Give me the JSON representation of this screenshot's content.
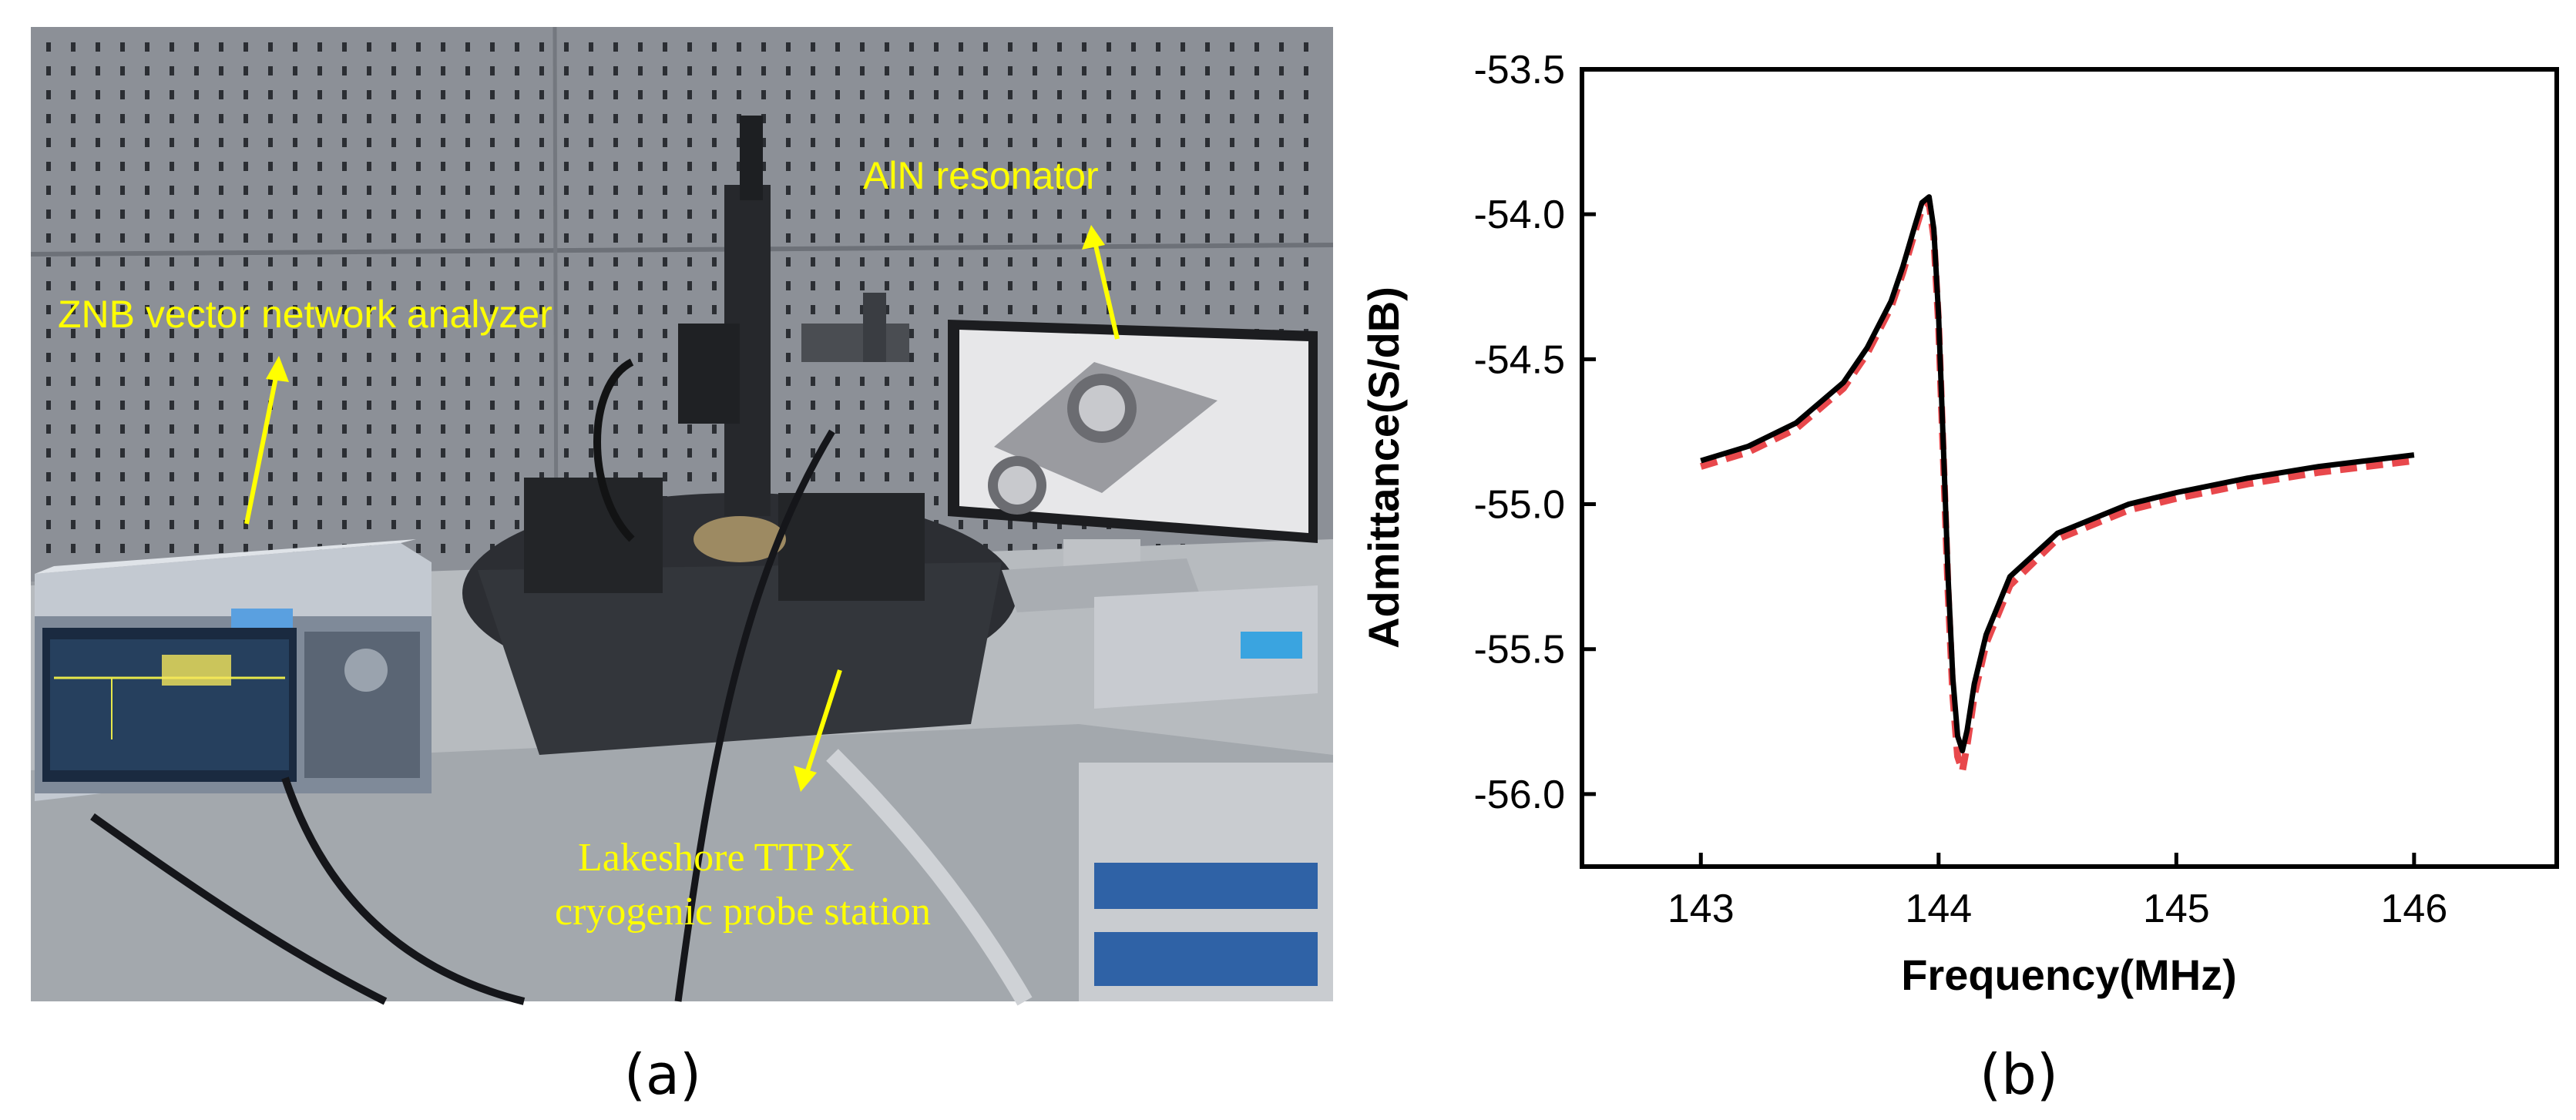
{
  "panels": {
    "a": {
      "label": "(a)",
      "annotations": {
        "vna": "ZNB vector network analyzer",
        "resonator": "AlN resonator",
        "probe_line1": "Lakeshore TTPX",
        "probe_line2": "cryogenic probe station"
      },
      "annotation_color": "#ffff00"
    },
    "b": {
      "label": "(b)"
    }
  },
  "chart_data": {
    "type": "line",
    "xlabel": "Frequency(MHz)",
    "ylabel": "Admittance(S/dB)",
    "xlim": [
      142.5,
      146.6
    ],
    "ylim": [
      -56.25,
      -53.5
    ],
    "xticks": [
      143,
      144,
      145,
      146
    ],
    "yticks": [
      -53.5,
      -54.0,
      -54.5,
      -55.0,
      -55.5,
      -56.0
    ],
    "ytick_labels": [
      "-53.5",
      "-54.0",
      "-54.5",
      "-55.0",
      "-55.5",
      "-56.0"
    ],
    "grid": false,
    "series": [
      {
        "style": "solid",
        "color": "#000000",
        "x": [
          143.0,
          143.2,
          143.4,
          143.6,
          143.7,
          143.8,
          143.85,
          143.9,
          143.93,
          143.96,
          143.98,
          144.0,
          144.02,
          144.04,
          144.06,
          144.08,
          144.1,
          144.12,
          144.15,
          144.2,
          144.3,
          144.5,
          144.8,
          145.0,
          145.3,
          145.6,
          146.0
        ],
        "y": [
          -54.85,
          -54.8,
          -54.72,
          -54.58,
          -54.46,
          -54.3,
          -54.18,
          -54.04,
          -53.96,
          -53.94,
          -54.05,
          -54.35,
          -54.8,
          -55.25,
          -55.6,
          -55.8,
          -55.85,
          -55.78,
          -55.62,
          -55.45,
          -55.25,
          -55.1,
          -55.0,
          -54.96,
          -54.91,
          -54.87,
          -54.83
        ]
      },
      {
        "style": "dashed",
        "color": "#e8484c",
        "x": [
          143.0,
          143.2,
          143.4,
          143.6,
          143.7,
          143.8,
          143.85,
          143.9,
          143.93,
          143.96,
          143.98,
          144.0,
          144.02,
          144.04,
          144.06,
          144.08,
          144.1,
          144.12,
          144.15,
          144.2,
          144.3,
          144.5,
          144.8,
          145.0,
          145.3,
          145.6,
          146.0
        ],
        "y": [
          -54.87,
          -54.82,
          -54.74,
          -54.6,
          -54.48,
          -54.32,
          -54.2,
          -54.06,
          -53.98,
          -53.96,
          -54.08,
          -54.38,
          -54.84,
          -55.3,
          -55.66,
          -55.87,
          -55.92,
          -55.83,
          -55.66,
          -55.48,
          -55.28,
          -55.12,
          -55.02,
          -54.98,
          -54.93,
          -54.89,
          -54.85
        ]
      }
    ]
  }
}
